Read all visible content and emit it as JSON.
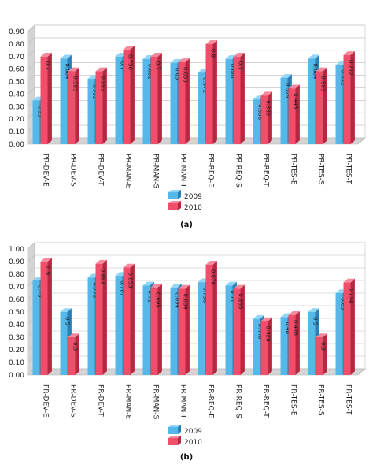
{
  "colors": {
    "s2009_front": "#55b8e8",
    "s2009_side": "#2b7fb5",
    "s2009_top": "#8fd6f7",
    "s2010_front": "#ef4f6a",
    "s2010_side": "#b52840",
    "s2010_top": "#f58a9c",
    "wall": "#d4d4d4",
    "grid": "#bcbcbc"
  },
  "chart_data": [
    {
      "type": "bar",
      "subtitle": "(a)",
      "categories": [
        "PR-DEV-E",
        "PR-DEV-S",
        "PR-DEV-T",
        "PR-MAN-E",
        "PR-MAN-S",
        "PR-MAN-T",
        "PR-REQ-E",
        "PR-REQ-S",
        "PR-REQ-T",
        "PR-TES-E",
        "PR-TES-S",
        "PR-TES-T"
      ],
      "series": [
        {
          "name": "2009",
          "values": [
            0.35,
            0.684,
            0.522,
            0.7,
            0.681,
            0.65,
            0.572,
            0.681,
            0.358,
            0.529,
            0.684,
            0.632
          ],
          "labels": [
            "0.35",
            "0.684",
            "0.522",
            "0.7",
            "0.681",
            "0.65",
            "0.572",
            "0.681",
            "0.358",
            "0.529",
            "0.684",
            "0.632"
          ]
        },
        {
          "name": "2010",
          "values": [
            0.7,
            0.583,
            0.583,
            0.756,
            0.7,
            0.655,
            0.8,
            0.7,
            0.389,
            0.445,
            0.583,
            0.712
          ],
          "labels": [
            "0.7",
            "0.583",
            "0.583",
            "0.756",
            "0.7",
            "0.655",
            "0.8",
            "0.7",
            "0.389",
            "0.445",
            "0.583",
            "0.712"
          ]
        }
      ],
      "ylim": [
        0,
        0.9
      ],
      "yticks": [
        "0.00",
        "0.10",
        "0.20",
        "0.30",
        "0.40",
        "0.50",
        "0.60",
        "0.70",
        "0.80",
        "0.90"
      ],
      "grid": true,
      "legend": "bottom-center"
    },
    {
      "type": "bar",
      "subtitle": "(b)",
      "categories": [
        "PR-DEV-E",
        "PR-DEV-S",
        "PR-DEV-T",
        "PR-MAN-E",
        "PR-MAN-S",
        "PR-MAN-T",
        "PR-REQ-E",
        "PR-REQ-S",
        "PR-REQ-T",
        "PR-TES-E",
        "PR-TES-S",
        "PR-TES-T"
      ],
      "series": [
        {
          "name": "2009",
          "values": [
            0.75,
            0.5,
            0.773,
            0.787,
            0.71,
            0.694,
            0.736,
            0.71,
            0.446,
            0.46,
            0.5,
            0.65
          ],
          "labels": [
            "0.75",
            "0.5",
            "0.773",
            "0.787",
            "0.71",
            "0.694",
            "0.736",
            "0.71",
            "0.446",
            "0.46",
            "0.5",
            "0.65"
          ]
        },
        {
          "name": "2010",
          "values": [
            0.9,
            0.3,
            0.883,
            0.853,
            0.695,
            0.684,
            0.876,
            0.685,
            0.428,
            0.476,
            0.3,
            0.734
          ],
          "labels": [
            "0.9",
            "0.3",
            "0.883",
            "0.853",
            "0.695",
            "0.684",
            "0.876",
            "0.685",
            "0.428",
            "0.476",
            "0.3",
            "0.734"
          ]
        }
      ],
      "ylim": [
        0,
        1.0
      ],
      "yticks": [
        "0.00",
        "0.10",
        "0.20",
        "0.30",
        "0.40",
        "0.50",
        "0.60",
        "0.70",
        "0.80",
        "0.90",
        "1.00"
      ],
      "grid": true,
      "legend": "bottom-center"
    }
  ]
}
